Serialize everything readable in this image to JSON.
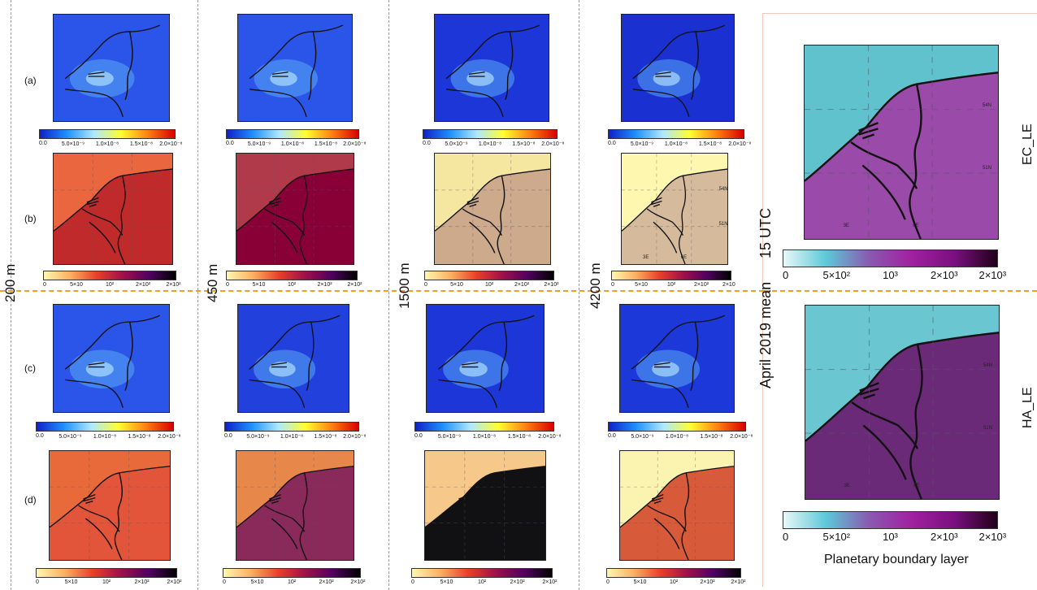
{
  "row_labels": {
    "a": "(a)",
    "b": "(b)",
    "c": "(c)",
    "d": "(d)"
  },
  "column_heights": [
    "200 m",
    "450 m",
    "1500 m",
    "4200 m"
  ],
  "side_labels": {
    "time": "15 UTC",
    "period": "April 2019 mean",
    "top_model": "EC_LE",
    "bottom_model": "HA_LE"
  },
  "footer_label": "Planetary boundary layer",
  "map_coords": {
    "lat1": "54N",
    "lat2": "51N",
    "lon1": "3E",
    "lon2": "6E"
  },
  "colorbar_blue": {
    "ticks": [
      "0.0",
      "5.0×10⁻⁹",
      "1.0×10⁻⁸",
      "1.5×10⁻⁸",
      "2.0×10⁻⁸"
    ],
    "colors": [
      "#1020c8",
      "#1e90ff",
      "#aee8ff",
      "#ffff30",
      "#ff8010",
      "#d80000"
    ]
  },
  "colorbar_heat": {
    "ticks": [
      "0",
      "5×10",
      "10²",
      "2×10²",
      "2×10²"
    ],
    "ticks_alt": [
      "0",
      "5×10",
      "10²",
      "2×10²",
      "2×10"
    ],
    "colors": [
      "#fff7b0",
      "#fcb060",
      "#e8402a",
      "#a0104a",
      "#500060",
      "#000000"
    ]
  },
  "colorbar_pbl": {
    "ticks": [
      "0",
      "5×10²",
      "10³",
      "2×10³",
      "2×10³"
    ],
    "colors": [
      "#e8f8f8",
      "#5cc8d8",
      "#8a5ab0",
      "#a020a0",
      "#7a1080",
      "#200018"
    ]
  },
  "map_fills": {
    "blue": [
      "#2a55e8",
      "#2a55e8",
      "#1c36d8",
      "#1a30d0"
    ],
    "blue_c": [
      "#2a55e8",
      "#2240dc",
      "#1c36d8",
      "#1c38d8"
    ],
    "heat_b": [
      "#e9663f",
      "#b03a4a",
      "#f5e6a0",
      "#fdf7b0"
    ],
    "heat_d": [
      "#e2553a",
      "#8a2a5a",
      "#111012",
      "#d75a3a"
    ],
    "pbl_top_sea": "#5fc2cc",
    "pbl_top_land": "#9a4aa8",
    "pbl_bot_sea": "#6ac6d0",
    "pbl_bot_land": "#6a2a78"
  }
}
